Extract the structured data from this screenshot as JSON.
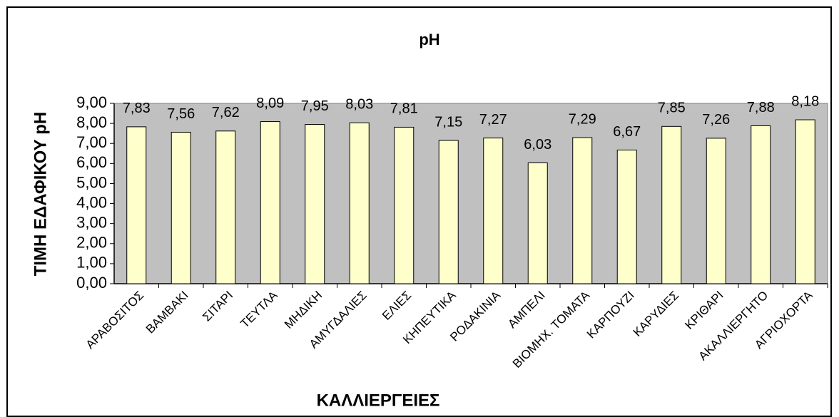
{
  "chart_data": {
    "type": "bar",
    "title": "pH",
    "y_label": "ΤΙΜΗ ΕΔΑΦΙΚΟΥ pH",
    "x_label": "ΚΑΛΛΙΕΡΓΕΙΕΣ",
    "categories": [
      "ΑΡΑΒΟΣΙΤΟΣ",
      "ΒΑΜΒΑΚΙ",
      "ΣΙΤΑΡΙ",
      "ΤΕΥΤΛΑ",
      "ΜΗΔΙΚΗ",
      "ΑΜΥΓΔΑΛΙΕΣ",
      "ΕΛΙΕΣ",
      "ΚΗΠΕΥΤΙΚΑ",
      "ΡΟΔΑΚΙΝΙΑ",
      "ΑΜΠΕΛΙ",
      "ΒΙΟΜΗΧ. ΤΟΜΑΤΑ",
      "ΚΑΡΠΟΥΖΙ",
      "ΚΑΡΥΔΙΕΣ",
      "ΚΡΙΘΑΡΙ",
      "ΑΚΑΛΛΙΕΡΓΗΤΟ",
      "ΑΓΡΙΟΧΟΡΤΑ"
    ],
    "values": [
      7.83,
      7.56,
      7.62,
      8.09,
      7.95,
      8.03,
      7.81,
      7.15,
      7.27,
      6.03,
      7.29,
      6.67,
      7.85,
      7.26,
      7.88,
      8.18
    ],
    "value_labels": [
      "7,83",
      "7,56",
      "7,62",
      "8,09",
      "7,95",
      "8,03",
      "7,81",
      "7,15",
      "7,27",
      "6,03",
      "7,29",
      "6,67",
      "7,85",
      "7,26",
      "7,88",
      "8,18"
    ],
    "color": "#ffffcc",
    "plot_background": "#c0c0c0",
    "ylim": [
      0,
      9
    ],
    "yticks": [
      {
        "value": 0,
        "label": "0,00"
      },
      {
        "value": 1,
        "label": "1,00"
      },
      {
        "value": 2,
        "label": "2,00"
      },
      {
        "value": 3,
        "label": "3,00"
      },
      {
        "value": 4,
        "label": "4,00"
      },
      {
        "value": 5,
        "label": "5,00"
      },
      {
        "value": 6,
        "label": "6,00"
      },
      {
        "value": 7,
        "label": "7,00"
      },
      {
        "value": 8,
        "label": "8,00"
      },
      {
        "value": 9,
        "label": "9,00"
      }
    ]
  }
}
